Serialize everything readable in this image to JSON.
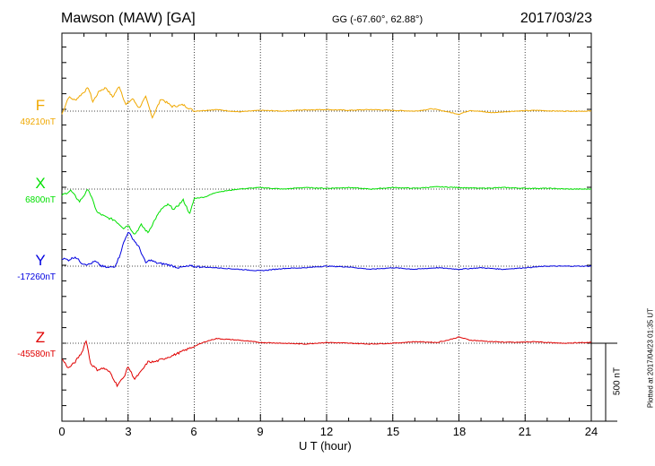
{
  "header": {
    "station": "Mawson (MAW)  [GA]",
    "coords": "GG (-67.60°,  62.88°)",
    "date": "2017/03/23"
  },
  "side_note": "Plotted at 2017/04/23 01:35 UT",
  "scale_label": "500 nT",
  "chart_data": {
    "type": "line",
    "xlabel": "U T (hour)",
    "xlim": [
      0,
      24
    ],
    "xticks": [
      "0",
      "3",
      "6",
      "9",
      "12",
      "15",
      "18",
      "21",
      "24"
    ],
    "grid": true,
    "scale_nT": 500,
    "series": [
      {
        "name": "F",
        "baseline": "49210nT",
        "color": "#f0a800",
        "x": [
          0,
          0.3,
          0.6,
          0.9,
          1.2,
          1.4,
          1.7,
          2.0,
          2.3,
          2.6,
          2.9,
          3.2,
          3.5,
          3.8,
          4.1,
          4.5,
          5.0,
          5.5,
          6.0,
          7,
          8,
          9,
          10,
          11,
          12,
          13,
          14,
          15,
          16,
          16.8,
          17.5,
          18.0,
          18.5,
          19.5,
          20.5,
          21.5,
          22.5,
          24
        ],
        "values": [
          -20,
          90,
          70,
          110,
          150,
          60,
          130,
          150,
          90,
          160,
          40,
          80,
          20,
          90,
          -40,
          80,
          30,
          40,
          0,
          10,
          -5,
          5,
          0,
          8,
          10,
          5,
          10,
          5,
          0,
          15,
          -5,
          -20,
          5,
          -10,
          0,
          5,
          0,
          0
        ]
      },
      {
        "name": "X",
        "baseline": "6800nT",
        "color": "#00e000",
        "x": [
          0,
          0.4,
          0.8,
          1.2,
          1.6,
          2.0,
          2.4,
          2.8,
          3.0,
          3.3,
          3.6,
          3.9,
          4.2,
          4.5,
          4.8,
          5.1,
          5.5,
          5.8,
          6.0,
          6.5,
          7,
          8,
          9,
          10,
          11,
          12,
          13,
          14,
          15,
          16,
          17,
          18,
          19,
          20,
          21,
          22,
          23,
          24
        ],
        "values": [
          -40,
          -10,
          -80,
          0,
          -150,
          -180,
          -200,
          -250,
          -230,
          -290,
          -230,
          -280,
          -200,
          -130,
          -100,
          -130,
          -70,
          -160,
          -60,
          -50,
          -20,
          0,
          10,
          0,
          10,
          5,
          10,
          0,
          10,
          5,
          15,
          10,
          5,
          10,
          5,
          5,
          0,
          0
        ]
      },
      {
        "name": "Y",
        "baseline": "-17260nT",
        "color": "#0000e0",
        "x": [
          0,
          0.3,
          0.6,
          0.9,
          1.2,
          1.5,
          1.8,
          2.1,
          2.4,
          2.6,
          2.8,
          3.0,
          3.2,
          3.5,
          3.8,
          4.0,
          4.3,
          4.8,
          5.3,
          5.8,
          6.3,
          7,
          8,
          9,
          10,
          11,
          12,
          13,
          14,
          15,
          16,
          17,
          18,
          19,
          20,
          21,
          22,
          23,
          24
        ],
        "values": [
          50,
          40,
          60,
          20,
          10,
          30,
          0,
          -10,
          0,
          60,
          150,
          220,
          180,
          120,
          20,
          40,
          20,
          10,
          -10,
          0,
          -5,
          -10,
          -20,
          -30,
          -15,
          -10,
          0,
          -5,
          -20,
          -10,
          -20,
          -10,
          -20,
          -10,
          -20,
          -10,
          0,
          0,
          0
        ]
      },
      {
        "name": "Z",
        "baseline": "-45580nT",
        "color": "#e00000",
        "x": [
          0,
          0.3,
          0.6,
          0.9,
          1.1,
          1.3,
          1.6,
          1.9,
          2.2,
          2.5,
          2.8,
          3.0,
          3.3,
          3.6,
          3.9,
          4.2,
          4.6,
          5.0,
          5.5,
          6.0,
          6.5,
          7,
          8,
          9,
          10,
          11,
          12,
          13,
          14,
          15,
          16,
          17,
          17.5,
          18,
          18.5,
          19.5,
          20.5,
          21.5,
          22.5,
          24
        ],
        "values": [
          -100,
          -160,
          -120,
          -60,
          20,
          -130,
          -170,
          -160,
          -190,
          -270,
          -220,
          -150,
          -230,
          -180,
          -120,
          -120,
          -100,
          -80,
          -50,
          -20,
          10,
          30,
          20,
          5,
          0,
          -5,
          5,
          0,
          -5,
          0,
          10,
          5,
          20,
          40,
          20,
          10,
          5,
          10,
          0,
          5
        ]
      }
    ]
  }
}
